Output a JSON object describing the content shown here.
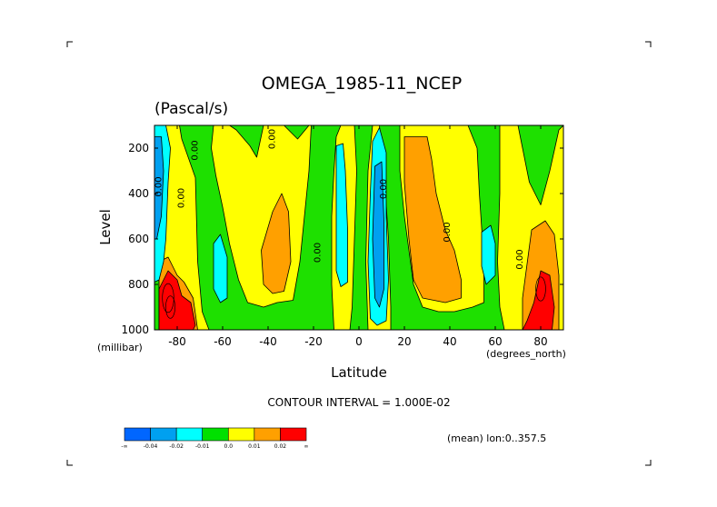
{
  "chart_data": {
    "type": "heatmap",
    "title": "OMEGA_1985-11_NCEP",
    "subtitle": "(Pascal/s)",
    "xlabel": "Latitude",
    "ylabel": "Level",
    "x_units": "(degrees_north)",
    "y_units": "(millibar)",
    "xlim": [
      -90,
      90
    ],
    "ylim": [
      1000,
      100
    ],
    "x_ticks": [
      -80,
      -60,
      -40,
      -20,
      0,
      20,
      40,
      60,
      80
    ],
    "x_tick_labels": [
      "-80",
      "-60",
      "-40",
      "-20",
      "0",
      "20",
      "40",
      "60",
      "80"
    ],
    "y_ticks": [
      200,
      400,
      600,
      800,
      1000
    ],
    "y_tick_labels": [
      "200",
      "400",
      "600",
      "800",
      "1000"
    ],
    "contour_interval_text": "CONTOUR INTERVAL = 1.000E-02",
    "mean_text": "(mean) lon:0..357.5",
    "contour_labels": [
      {
        "text": "0.00",
        "lat": -87,
        "p": 370
      },
      {
        "text": "0.00",
        "lat": -77,
        "p": 420
      },
      {
        "text": "0.00",
        "lat": -71,
        "p": 210
      },
      {
        "text": "0.00",
        "lat": -37,
        "p": 160
      },
      {
        "text": "0.00",
        "lat": -17,
        "p": 660
      },
      {
        "text": "0.00",
        "lat": 12,
        "p": 380
      },
      {
        "text": "0.00",
        "lat": 40,
        "p": 570
      },
      {
        "text": "0.00",
        "lat": 72,
        "p": 690
      }
    ],
    "colorbar": {
      "colors": [
        "#0066ff",
        "#00a0f0",
        "#00ffff",
        "#00e000",
        "#ffff00",
        "#ffa000",
        "#ff0000"
      ],
      "labels": [
        "-∞",
        "-0.04",
        "-0.02",
        "-0.01",
        "0.0",
        "0.01",
        "0.02",
        "∞"
      ]
    },
    "fields": {
      "green": "#1ee000",
      "yellow": "#ffff00",
      "orange": "#ffa000",
      "red": "#ff0000",
      "cyan": "#00ffff",
      "blue": "#00a0f0"
    }
  }
}
